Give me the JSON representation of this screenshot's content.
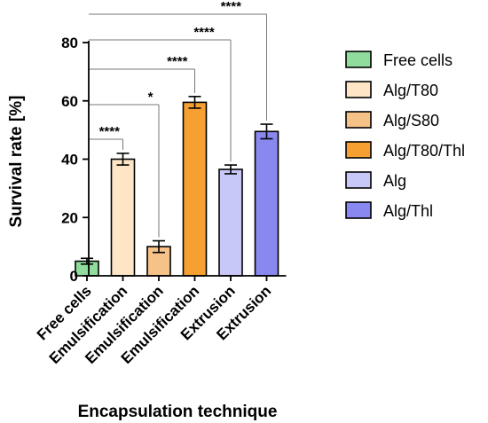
{
  "chart_data": {
    "type": "bar",
    "ylabel": "Survival rate [%]",
    "xlabel": "Encapsulation technique",
    "ylim": [
      0,
      80
    ],
    "yticks": [
      0,
      20,
      40,
      60,
      80
    ],
    "categories": [
      "Free cells",
      "Emulsification",
      "Emulsification",
      "Emulsification",
      "Extrusion",
      "Extrusion"
    ],
    "series_names": [
      "Free cells",
      "Alg/T80",
      "Alg/S80",
      "Alg/T80/Thl",
      "Alg",
      "Alg/Thl"
    ],
    "values": [
      5,
      40,
      10,
      59.5,
      36.5,
      49.5
    ],
    "errors": [
      1,
      2,
      2,
      2,
      1.5,
      2.5
    ],
    "colors": [
      "#8fdc9c",
      "#fde5c6",
      "#f7c287",
      "#f5a030",
      "#c8c8f8",
      "#8888f0"
    ],
    "significance": [
      {
        "from": 0,
        "to": 1,
        "label": "****"
      },
      {
        "from": 0,
        "to": 2,
        "label": "*"
      },
      {
        "from": 0,
        "to": 3,
        "label": "****"
      },
      {
        "from": 0,
        "to": 4,
        "label": "****"
      },
      {
        "from": 0,
        "to": 5,
        "label": "****"
      }
    ],
    "legend_position": "right"
  }
}
